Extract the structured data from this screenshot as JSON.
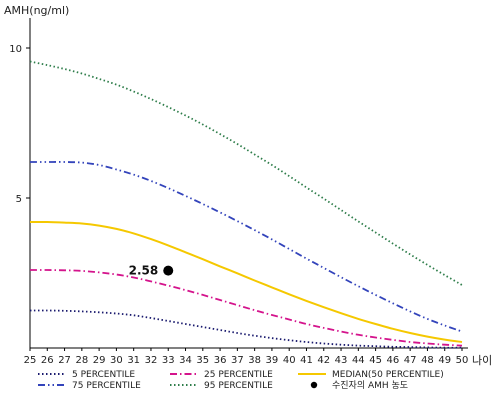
{
  "chart_data": {
    "type": "line",
    "title": "",
    "ylabel": "AMH(ng/ml)",
    "xlabel": "나이",
    "x": [
      25,
      26,
      27,
      28,
      29,
      30,
      31,
      32,
      33,
      34,
      35,
      36,
      37,
      38,
      39,
      40,
      41,
      42,
      43,
      44,
      45,
      46,
      47,
      48,
      49,
      50
    ],
    "xlim": [
      25,
      50
    ],
    "ylim": [
      0,
      11
    ],
    "yticks": [
      5,
      10
    ],
    "grid": false,
    "legend_position": "bottom",
    "colors": {
      "p5": "#1a1a6e",
      "p25": "#d4148c",
      "median": "#f5c800",
      "p75": "#3344bb",
      "p95": "#2e7d4a",
      "marker": "#000000"
    },
    "series": [
      {
        "name": "5 PERCENTILE",
        "key": "p5",
        "dash": "dot",
        "values": [
          1.25,
          1.25,
          1.24,
          1.22,
          1.19,
          1.15,
          1.09,
          1.0,
          0.9,
          0.8,
          0.7,
          0.6,
          0.5,
          0.41,
          0.33,
          0.26,
          0.2,
          0.15,
          0.11,
          0.08,
          0.06,
          0.04,
          0.03,
          0.02,
          0.01,
          0.01
        ]
      },
      {
        "name": "25 PERCENTILE",
        "key": "p25",
        "dash": "dashdot",
        "values": [
          2.6,
          2.6,
          2.59,
          2.57,
          2.52,
          2.45,
          2.35,
          2.22,
          2.08,
          1.93,
          1.77,
          1.6,
          1.43,
          1.26,
          1.1,
          0.95,
          0.8,
          0.67,
          0.55,
          0.44,
          0.35,
          0.27,
          0.2,
          0.15,
          0.11,
          0.08
        ]
      },
      {
        "name": "MEDIAN(50 PERCENTILE)",
        "key": "median",
        "dash": "solid",
        "values": [
          4.2,
          4.2,
          4.18,
          4.15,
          4.08,
          3.97,
          3.82,
          3.63,
          3.42,
          3.19,
          2.96,
          2.72,
          2.49,
          2.25,
          2.02,
          1.79,
          1.57,
          1.36,
          1.16,
          0.97,
          0.8,
          0.64,
          0.5,
          0.38,
          0.28,
          0.2
        ]
      },
      {
        "name": "75 PERCENTILE",
        "key": "p75",
        "dash": "dashdotdot",
        "values": [
          6.2,
          6.2,
          6.2,
          6.18,
          6.1,
          5.95,
          5.78,
          5.57,
          5.33,
          5.07,
          4.8,
          4.52,
          4.23,
          3.93,
          3.62,
          3.3,
          2.98,
          2.67,
          2.36,
          2.06,
          1.77,
          1.49,
          1.22,
          0.97,
          0.75,
          0.55
        ]
      },
      {
        "name": "95 PERCENTILE",
        "key": "p95",
        "dash": "dot",
        "values": [
          9.55,
          9.43,
          9.3,
          9.15,
          8.97,
          8.78,
          8.55,
          8.3,
          8.03,
          7.75,
          7.45,
          7.13,
          6.8,
          6.45,
          6.1,
          5.73,
          5.35,
          4.98,
          4.6,
          4.22,
          3.85,
          3.48,
          3.12,
          2.77,
          2.43,
          2.1
        ]
      }
    ],
    "marker": {
      "name": "수진자의 AMH 농도",
      "x": 33,
      "y": 2.58,
      "label": "2.58"
    },
    "legend": [
      {
        "key": "p5",
        "label": "5 PERCENTILE"
      },
      {
        "key": "p25",
        "label": "25 PERCENTILE"
      },
      {
        "key": "median",
        "label": "MEDIAN(50 PERCENTILE)"
      },
      {
        "key": "p75",
        "label": "75 PERCENTILE"
      },
      {
        "key": "p95",
        "label": "95 PERCENTILE"
      },
      {
        "key": "marker",
        "label": "수진자의 AMH 농도"
      }
    ]
  }
}
